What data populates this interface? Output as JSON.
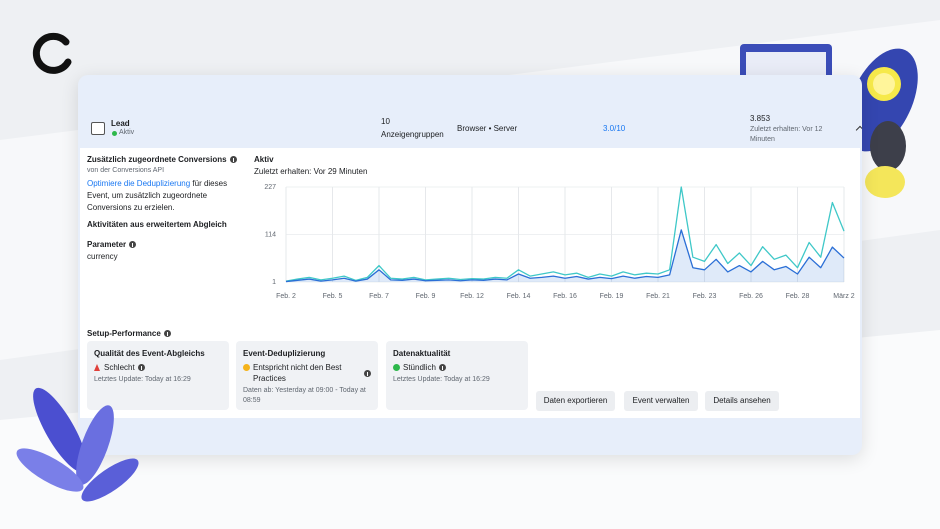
{
  "header": {
    "event_name": "Lead",
    "status": "Aktiv",
    "ad_groups_count": "10",
    "ad_groups_label": "Anzeigengruppen",
    "source": "Browser • Server",
    "score": "3.0/10",
    "total": "3.853",
    "last_received": "Zuletzt erhalten: Vor 12 Minuten"
  },
  "info": {
    "title": "Zusätzlich zugeordnete Conversions",
    "subtitle": "von der Conversions API",
    "link": "Optimiere die Deduplizierung",
    "text": " für dieses Event, um zusätzlich zugeordnete Conversions zu erzielen.",
    "advanced_matching": "Aktivitäten aus erweitertem Abgleich",
    "parameter_title": "Parameter",
    "parameter_value": "currency"
  },
  "chart_data": {
    "type": "line",
    "title": "Aktiv",
    "subtitle": "Zuletzt erhalten: Vor 29 Minuten",
    "x": [
      0,
      1,
      2,
      3,
      4,
      5,
      6,
      7,
      8,
      9,
      10,
      11,
      12,
      13,
      14,
      15,
      16,
      17,
      18,
      19,
      20,
      21,
      22,
      23,
      24,
      25,
      26,
      27,
      28,
      29,
      30,
      31,
      32,
      33,
      34,
      35,
      36,
      37,
      38,
      39,
      40,
      41,
      42,
      43,
      44,
      45,
      46,
      47,
      48
    ],
    "xlim": [
      0,
      48
    ],
    "xticks": [
      {
        "value": 0,
        "label": "Feb. 2"
      },
      {
        "value": 4,
        "label": "Feb. 5"
      },
      {
        "value": 8,
        "label": "Feb. 7"
      },
      {
        "value": 12,
        "label": "Feb. 9"
      },
      {
        "value": 16,
        "label": "Feb. 12"
      },
      {
        "value": 20,
        "label": "Feb. 14"
      },
      {
        "value": 24,
        "label": "Feb. 16"
      },
      {
        "value": 28,
        "label": "Feb. 19"
      },
      {
        "value": 32,
        "label": "Feb. 21"
      },
      {
        "value": 36,
        "label": "Feb. 23"
      },
      {
        "value": 40,
        "label": "Feb. 26"
      },
      {
        "value": 44,
        "label": "Feb. 28"
      },
      {
        "value": 48,
        "label": "März 2"
      }
    ],
    "ylim": [
      1,
      227
    ],
    "yticks": [
      1,
      114,
      227
    ],
    "grid": true,
    "series": [
      {
        "color": "#3fc8c8",
        "area": false,
        "values": [
          3,
          8,
          12,
          6,
          10,
          15,
          5,
          12,
          40,
          10,
          8,
          12,
          6,
          8,
          10,
          7,
          9,
          8,
          12,
          10,
          30,
          15,
          20,
          25,
          18,
          22,
          12,
          20,
          15,
          25,
          18,
          22,
          20,
          30,
          227,
          60,
          50,
          90,
          45,
          70,
          40,
          85,
          55,
          65,
          35,
          95,
          60,
          190,
          122
        ]
      },
      {
        "color": "#2b6fd6",
        "area": true,
        "values": [
          2,
          5,
          8,
          3,
          6,
          10,
          3,
          8,
          30,
          6,
          5,
          8,
          4,
          5,
          6,
          4,
          6,
          5,
          8,
          6,
          20,
          10,
          12,
          15,
          10,
          14,
          8,
          12,
          9,
          15,
          10,
          14,
          12,
          18,
          125,
          35,
          30,
          55,
          25,
          40,
          25,
          50,
          30,
          38,
          20,
          60,
          35,
          84,
          58
        ]
      }
    ]
  },
  "setup": {
    "title": "Setup-Performance",
    "cards": [
      {
        "title": "Qualität des Event-Abgleichs",
        "status": "Schlecht",
        "note": "Letztes Update: Today at 16:29"
      },
      {
        "title": "Event-Deduplizierung",
        "status": "Entspricht nicht den Best Practices",
        "note": "Daten ab: Yesterday at 09:00 - Today at 08:59"
      },
      {
        "title": "Datenaktualität",
        "status": "Stündlich",
        "note": "Letztes Update: Today at 16:29"
      }
    ],
    "buttons": [
      "Daten exportieren",
      "Event verwalten",
      "Details ansehen"
    ]
  }
}
